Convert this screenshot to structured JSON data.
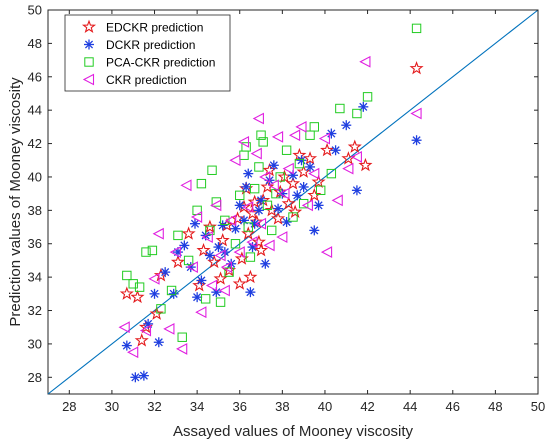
{
  "chart_data": {
    "type": "scatter",
    "title": "",
    "xlabel": "Assayed values of Mooney viscosity",
    "ylabel": "Prediction values of Mooney viscosity",
    "xlim": [
      27,
      50
    ],
    "ylim": [
      27,
      50
    ],
    "xticks": [
      28,
      30,
      32,
      34,
      36,
      38,
      40,
      42,
      44,
      46,
      48,
      50
    ],
    "yticks": [
      28,
      30,
      32,
      34,
      36,
      38,
      40,
      42,
      44,
      46,
      48,
      50
    ],
    "grid": false,
    "legend_position": "top-left",
    "reference_line": {
      "from": [
        27,
        27
      ],
      "to": [
        50,
        50
      ],
      "color": "#0072BD"
    },
    "series": [
      {
        "name": "EDCKR prediction",
        "marker": "star",
        "color": "#E41A1C",
        "points": [
          [
            30.7,
            33.0
          ],
          [
            31.2,
            32.8
          ],
          [
            31.4,
            30.2
          ],
          [
            31.6,
            31.0
          ],
          [
            32.1,
            31.8
          ],
          [
            32.3,
            34.1
          ],
          [
            33.1,
            34.9
          ],
          [
            33.6,
            36.6
          ],
          [
            34.1,
            33.5
          ],
          [
            34.3,
            35.6
          ],
          [
            34.6,
            37.0
          ],
          [
            35.1,
            33.9
          ],
          [
            35.2,
            36.2
          ],
          [
            35.4,
            37.1
          ],
          [
            35.5,
            34.4
          ],
          [
            35.9,
            37.5
          ],
          [
            36.1,
            35.1
          ],
          [
            36.2,
            38.2
          ],
          [
            36.3,
            39.3
          ],
          [
            36.4,
            36.6
          ],
          [
            36.5,
            34.0
          ],
          [
            36.6,
            37.8
          ],
          [
            36.7,
            38.5
          ],
          [
            36.8,
            37.3
          ],
          [
            36.9,
            36.1
          ],
          [
            37.0,
            35.6
          ],
          [
            37.1,
            38.6
          ],
          [
            37.3,
            39.4
          ],
          [
            37.5,
            38.0
          ],
          [
            37.8,
            37.5
          ],
          [
            37.9,
            39.1
          ],
          [
            38.1,
            40.0
          ],
          [
            38.3,
            38.4
          ],
          [
            38.5,
            39.6
          ],
          [
            38.6,
            37.9
          ],
          [
            39.0,
            40.3
          ],
          [
            39.3,
            41.1
          ],
          [
            39.5,
            38.9
          ],
          [
            39.7,
            39.7
          ],
          [
            40.1,
            41.6
          ],
          [
            41.1,
            41.1
          ],
          [
            41.4,
            41.8
          ],
          [
            41.9,
            40.7
          ],
          [
            44.3,
            46.5
          ],
          [
            34.8,
            34.9
          ],
          [
            36.0,
            33.6
          ],
          [
            37.4,
            40.4
          ],
          [
            38.8,
            41.3
          ]
        ]
      },
      {
        "name": "DCKR prediction",
        "marker": "asterisk",
        "color": "#1F3FE0",
        "points": [
          [
            30.7,
            29.9
          ],
          [
            31.1,
            28.0
          ],
          [
            31.5,
            28.1
          ],
          [
            31.7,
            31.2
          ],
          [
            32.0,
            33.0
          ],
          [
            32.2,
            30.1
          ],
          [
            32.9,
            33.0
          ],
          [
            33.1,
            35.5
          ],
          [
            33.4,
            35.9
          ],
          [
            33.7,
            34.6
          ],
          [
            34.0,
            32.8
          ],
          [
            34.2,
            33.8
          ],
          [
            34.4,
            36.5
          ],
          [
            34.6,
            35.3
          ],
          [
            34.9,
            33.1
          ],
          [
            35.2,
            37.1
          ],
          [
            35.3,
            35.5
          ],
          [
            35.6,
            34.8
          ],
          [
            35.8,
            36.9
          ],
          [
            36.0,
            38.3
          ],
          [
            36.2,
            37.4
          ],
          [
            36.3,
            39.4
          ],
          [
            36.5,
            33.1
          ],
          [
            36.6,
            35.8
          ],
          [
            36.7,
            37.2
          ],
          [
            36.9,
            38.0
          ],
          [
            37.0,
            38.6
          ],
          [
            37.2,
            34.8
          ],
          [
            37.4,
            39.8
          ],
          [
            37.6,
            40.7
          ],
          [
            37.8,
            38.1
          ],
          [
            38.0,
            39.0
          ],
          [
            38.2,
            37.3
          ],
          [
            38.5,
            40.1
          ],
          [
            38.7,
            38.9
          ],
          [
            39.0,
            39.4
          ],
          [
            39.3,
            40.6
          ],
          [
            39.5,
            36.8
          ],
          [
            39.7,
            38.3
          ],
          [
            40.3,
            42.6
          ],
          [
            40.5,
            41.6
          ],
          [
            41.0,
            43.1
          ],
          [
            41.5,
            39.2
          ],
          [
            41.8,
            44.2
          ],
          [
            44.3,
            42.2
          ],
          [
            32.5,
            34.3
          ],
          [
            33.9,
            37.2
          ],
          [
            35.0,
            35.8
          ],
          [
            36.4,
            40.2
          ],
          [
            38.9,
            41.0
          ]
        ]
      },
      {
        "name": "PCA-CKR prediction",
        "marker": "square",
        "color": "#22CC22",
        "points": [
          [
            30.7,
            34.1
          ],
          [
            31.0,
            33.6
          ],
          [
            31.3,
            33.4
          ],
          [
            31.6,
            35.5
          ],
          [
            31.9,
            35.6
          ],
          [
            32.3,
            32.1
          ],
          [
            32.8,
            33.2
          ],
          [
            33.1,
            36.5
          ],
          [
            33.3,
            30.4
          ],
          [
            33.6,
            35.0
          ],
          [
            34.0,
            38.0
          ],
          [
            34.2,
            39.6
          ],
          [
            34.4,
            32.7
          ],
          [
            34.6,
            36.8
          ],
          [
            34.9,
            38.5
          ],
          [
            35.1,
            32.5
          ],
          [
            35.3,
            37.4
          ],
          [
            35.5,
            34.3
          ],
          [
            35.8,
            36.0
          ],
          [
            36.0,
            38.9
          ],
          [
            36.2,
            41.3
          ],
          [
            36.4,
            37.0
          ],
          [
            36.5,
            35.2
          ],
          [
            36.7,
            39.3
          ],
          [
            36.9,
            40.6
          ],
          [
            37.1,
            42.1
          ],
          [
            37.3,
            38.3
          ],
          [
            37.5,
            36.8
          ],
          [
            37.7,
            39.0
          ],
          [
            37.9,
            40.0
          ],
          [
            38.2,
            41.6
          ],
          [
            38.5,
            37.6
          ],
          [
            38.8,
            40.8
          ],
          [
            39.0,
            38.4
          ],
          [
            39.3,
            42.5
          ],
          [
            39.5,
            43.0
          ],
          [
            39.8,
            39.2
          ],
          [
            40.3,
            40.2
          ],
          [
            40.7,
            44.1
          ],
          [
            41.5,
            43.8
          ],
          [
            42.0,
            44.8
          ],
          [
            44.3,
            48.9
          ],
          [
            34.7,
            40.4
          ],
          [
            37.0,
            42.5
          ],
          [
            36.3,
            41.8
          ]
        ]
      },
      {
        "name": "CKR prediction",
        "marker": "triangle-left",
        "color": "#E020E0",
        "points": [
          [
            30.6,
            31.0
          ],
          [
            31.0,
            29.5
          ],
          [
            31.6,
            30.8
          ],
          [
            32.0,
            33.9
          ],
          [
            32.2,
            36.6
          ],
          [
            32.7,
            30.9
          ],
          [
            33.0,
            35.5
          ],
          [
            33.3,
            29.7
          ],
          [
            33.5,
            39.5
          ],
          [
            33.8,
            34.6
          ],
          [
            34.0,
            37.6
          ],
          [
            34.2,
            31.9
          ],
          [
            34.5,
            36.4
          ],
          [
            34.7,
            33.5
          ],
          [
            34.9,
            38.3
          ],
          [
            35.1,
            35.3
          ],
          [
            35.3,
            33.2
          ],
          [
            35.6,
            37.4
          ],
          [
            35.8,
            41.0
          ],
          [
            36.0,
            35.5
          ],
          [
            36.2,
            42.1
          ],
          [
            36.4,
            38.2
          ],
          [
            36.6,
            36.1
          ],
          [
            36.8,
            41.4
          ],
          [
            37.0,
            37.2
          ],
          [
            37.2,
            40.0
          ],
          [
            37.4,
            35.9
          ],
          [
            37.6,
            39.5
          ],
          [
            37.8,
            42.4
          ],
          [
            38.0,
            36.4
          ],
          [
            38.3,
            40.5
          ],
          [
            38.6,
            42.5
          ],
          [
            38.9,
            43.0
          ],
          [
            39.2,
            38.3
          ],
          [
            39.5,
            40.2
          ],
          [
            40.0,
            42.3
          ],
          [
            40.1,
            35.5
          ],
          [
            40.6,
            38.6
          ],
          [
            41.1,
            40.5
          ],
          [
            41.5,
            41.2
          ],
          [
            41.9,
            46.9
          ],
          [
            44.3,
            43.8
          ],
          [
            35.4,
            34.6
          ],
          [
            36.9,
            43.5
          ],
          [
            38.1,
            39.0
          ]
        ]
      }
    ]
  }
}
